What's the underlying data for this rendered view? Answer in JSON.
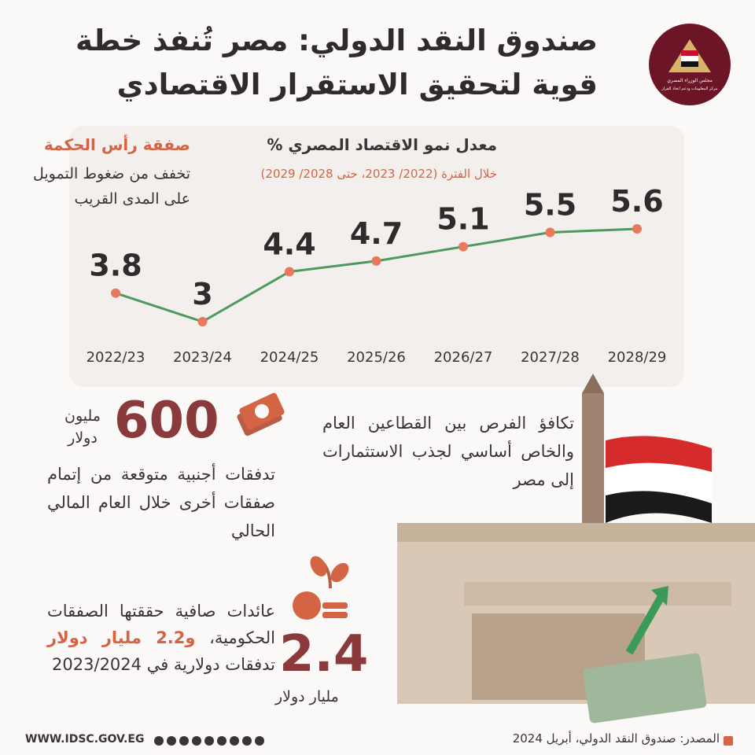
{
  "header": {
    "title_line1": "صندوق النقد الدولي: مصر تُنفذ خطة",
    "title_line2": "قوية لتحقيق الاستقرار الاقتصادي",
    "logo_line1": "مجلس الوزراء المصري",
    "logo_line2": "مركز المعلومات ودعم اتخاذ القرار"
  },
  "chart_data": {
    "type": "line",
    "title": "معدل نمو الاقتصاد المصري %",
    "subtitle": "خلال الفترة (2022/ 2023، حتى 2028/ 2029)",
    "categories": [
      "2022/23",
      "2023/24",
      "2024/25",
      "2025/26",
      "2026/27",
      "2027/28",
      "2028/29"
    ],
    "values": [
      3.8,
      3,
      4.4,
      4.7,
      5.1,
      5.5,
      5.6
    ],
    "color": "#4c9a5e",
    "marker_color": "#e8795c"
  },
  "side_note": {
    "heading": "صفقة رأس الحكمة",
    "text": "تخفف من ضغوط التمويل على المدى القريب"
  },
  "inflows": {
    "value": 600,
    "unit": "مليون دولار",
    "text": "تدفقات أجنبية متوقعة من إتمام صفقات أخرى خلال العام المالي الحالي"
  },
  "equality": {
    "text": "تكافؤ الفرص بين القطاعين العام والخاص أساسي لجذب الاستثمارات إلى مصر"
  },
  "revenues": {
    "value": 2.4,
    "unit": "مليار دولار",
    "text_start": "عائدات صافية حققتها الصفقات الحكومية،",
    "highlight": "و2.2 مليار دولار",
    "text_end": "تدفقات دولارية في 2023/2024"
  },
  "footer": {
    "website": "WWW.IDSC.GOV.EG",
    "source": "المصدر: صندوق النقد الدولي، أبريل 2024"
  }
}
